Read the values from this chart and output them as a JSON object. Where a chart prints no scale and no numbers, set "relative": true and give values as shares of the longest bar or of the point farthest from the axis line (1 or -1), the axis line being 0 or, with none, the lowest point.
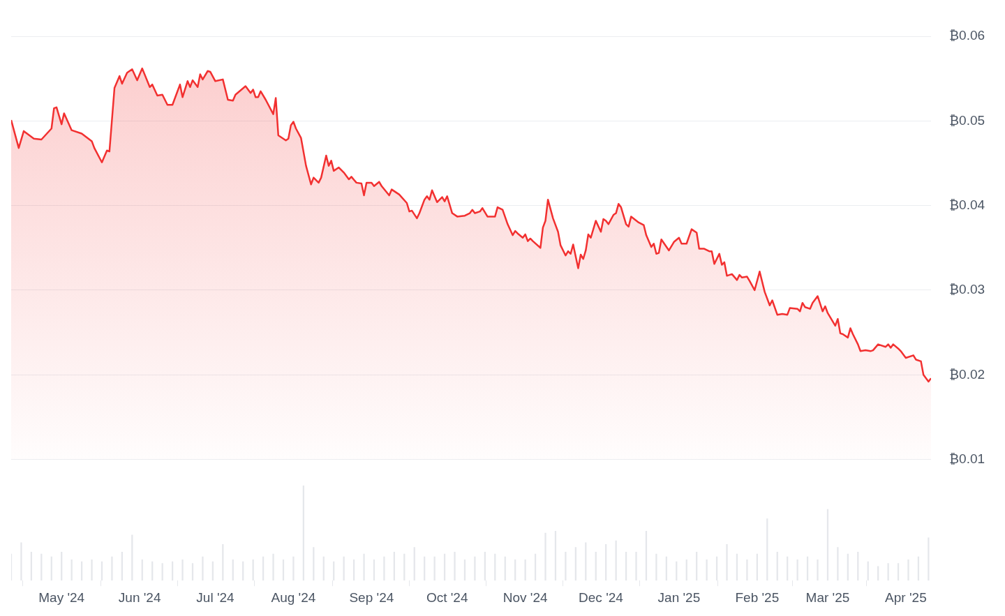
{
  "chart_data": [
    {
      "type": "area",
      "color": "#f23030",
      "xlim": [
        "2024-04-11",
        "2025-04-11"
      ],
      "ylim": [
        0.01,
        0.06
      ],
      "yticks": [
        {
          "value": 0.01,
          "label": "₿0.01"
        },
        {
          "value": 0.02,
          "label": "₿0.02"
        },
        {
          "value": 0.03,
          "label": "₿0.03"
        },
        {
          "value": 0.04,
          "label": "₿0.04"
        },
        {
          "value": 0.05,
          "label": "₿0.05"
        },
        {
          "value": 0.06,
          "label": "₿0.06"
        }
      ],
      "grid": "y",
      "tick_labels": "y",
      "marker": "none",
      "x": [
        "2024-04-11",
        "2024-04-14",
        "2024-04-16",
        "2024-04-20",
        "2024-04-23",
        "2024-04-27",
        "2024-04-28",
        "2024-04-29",
        "2024-05-01",
        "2024-05-02",
        "2024-05-05",
        "2024-05-09",
        "2024-05-13",
        "2024-05-14",
        "2024-05-17",
        "2024-05-19",
        "2024-05-20",
        "2024-05-22",
        "2024-05-24",
        "2024-05-25",
        "2024-05-27",
        "2024-05-29",
        "2024-05-31",
        "2024-06-02",
        "2024-06-05",
        "2024-06-06",
        "2024-06-08",
        "2024-06-10",
        "2024-06-12",
        "2024-06-14",
        "2024-06-17",
        "2024-06-18",
        "2024-06-20",
        "2024-06-21",
        "2024-06-22",
        "2024-06-24",
        "2024-06-25",
        "2024-06-26",
        "2024-06-28",
        "2024-06-29",
        "2024-07-01",
        "2024-07-04",
        "2024-07-06",
        "2024-07-08",
        "2024-07-09",
        "2024-07-13",
        "2024-07-15",
        "2024-07-16",
        "2024-07-17",
        "2024-07-18",
        "2024-07-19",
        "2024-07-21",
        "2024-07-24",
        "2024-07-25",
        "2024-07-26",
        "2024-07-29",
        "2024-07-30",
        "2024-07-31",
        "2024-08-01",
        "2024-08-02",
        "2024-08-04",
        "2024-08-06",
        "2024-08-08",
        "2024-08-09",
        "2024-08-11",
        "2024-08-12",
        "2024-08-14",
        "2024-08-15",
        "2024-08-16",
        "2024-08-17",
        "2024-08-19",
        "2024-08-21",
        "2024-08-23",
        "2024-08-24",
        "2024-08-26",
        "2024-08-28",
        "2024-08-29",
        "2024-08-30",
        "2024-09-01",
        "2024-09-02",
        "2024-09-04",
        "2024-09-05",
        "2024-09-08",
        "2024-09-09",
        "2024-09-12",
        "2024-09-15",
        "2024-09-16",
        "2024-09-17",
        "2024-09-19",
        "2024-09-20",
        "2024-09-22",
        "2024-09-23",
        "2024-09-24",
        "2024-09-25",
        "2024-09-27",
        "2024-09-29",
        "2024-09-30",
        "2024-10-01",
        "2024-10-03",
        "2024-10-05",
        "2024-10-08",
        "2024-10-10",
        "2024-10-11",
        "2024-10-12",
        "2024-10-14",
        "2024-10-15",
        "2024-10-17",
        "2024-10-20",
        "2024-10-21",
        "2024-10-23",
        "2024-10-25",
        "2024-10-27",
        "2024-10-28",
        "2024-10-29",
        "2024-10-31",
        "2024-11-01",
        "2024-11-02",
        "2024-11-03",
        "2024-11-04",
        "2024-11-07",
        "2024-11-08",
        "2024-11-09",
        "2024-11-10",
        "2024-11-12",
        "2024-11-14",
        "2024-11-15",
        "2024-11-17",
        "2024-11-18",
        "2024-11-19",
        "2024-11-20",
        "2024-11-22",
        "2024-11-23",
        "2024-11-24",
        "2024-11-25",
        "2024-11-26",
        "2024-11-27",
        "2024-11-29",
        "2024-12-01",
        "2024-12-02",
        "2024-12-03",
        "2024-12-04",
        "2024-12-06",
        "2024-12-07",
        "2024-12-08",
        "2024-12-09",
        "2024-12-11",
        "2024-12-12",
        "2024-12-13",
        "2024-12-16",
        "2024-12-18",
        "2024-12-19",
        "2024-12-21",
        "2024-12-22",
        "2024-12-23",
        "2024-12-24",
        "2024-12-25",
        "2024-12-28",
        "2024-12-30",
        "2025-01-01",
        "2025-01-02",
        "2025-01-04",
        "2025-01-06",
        "2025-01-08",
        "2025-01-09",
        "2025-01-11",
        "2025-01-13",
        "2025-01-14",
        "2025-01-15",
        "2025-01-17",
        "2025-01-18",
        "2025-01-19",
        "2025-01-20",
        "2025-01-22",
        "2025-01-24",
        "2025-01-25",
        "2025-01-26",
        "2025-01-28",
        "2025-01-29",
        "2025-01-31",
        "2025-02-02",
        "2025-02-04",
        "2025-02-06",
        "2025-02-07",
        "2025-02-09",
        "2025-02-11",
        "2025-02-13",
        "2025-02-14",
        "2025-02-17",
        "2025-02-18",
        "2025-02-19",
        "2025-02-20",
        "2025-02-22",
        "2025-02-23",
        "2025-02-25",
        "2025-02-27",
        "2025-02-28",
        "2025-03-01",
        "2025-03-04",
        "2025-03-05",
        "2025-03-06",
        "2025-03-07",
        "2025-03-09",
        "2025-03-10",
        "2025-03-11",
        "2025-03-13",
        "2025-03-14",
        "2025-03-16",
        "2025-03-18",
        "2025-03-19",
        "2025-03-21",
        "2025-03-24",
        "2025-03-25",
        "2025-03-26",
        "2025-03-27",
        "2025-03-29",
        "2025-03-30",
        "2025-04-01",
        "2025-04-04",
        "2025-04-05",
        "2025-04-07",
        "2025-04-08",
        "2025-04-10",
        "2025-04-11"
      ],
      "values": [
        0.0501,
        0.0468,
        0.0488,
        0.0479,
        0.0478,
        0.0491,
        0.0515,
        0.0516,
        0.0496,
        0.0509,
        0.0489,
        0.0485,
        0.0476,
        0.0468,
        0.0451,
        0.0465,
        0.0464,
        0.0539,
        0.0553,
        0.0544,
        0.0557,
        0.0561,
        0.0548,
        0.0562,
        0.054,
        0.0543,
        0.053,
        0.0531,
        0.0519,
        0.0519,
        0.0543,
        0.0528,
        0.0547,
        0.054,
        0.0548,
        0.054,
        0.0555,
        0.0549,
        0.0559,
        0.0558,
        0.0547,
        0.0549,
        0.0525,
        0.0524,
        0.0531,
        0.0541,
        0.0533,
        0.0537,
        0.0528,
        0.0528,
        0.0535,
        0.0525,
        0.0508,
        0.0527,
        0.0483,
        0.0477,
        0.0479,
        0.0495,
        0.0499,
        0.0491,
        0.048,
        0.0447,
        0.0425,
        0.0433,
        0.0427,
        0.0433,
        0.0459,
        0.0447,
        0.0453,
        0.0441,
        0.0445,
        0.0439,
        0.0431,
        0.0434,
        0.0427,
        0.0426,
        0.0412,
        0.0427,
        0.0427,
        0.0423,
        0.0428,
        0.0423,
        0.0412,
        0.0419,
        0.0413,
        0.0403,
        0.0393,
        0.0394,
        0.0385,
        0.0391,
        0.0407,
        0.0411,
        0.0407,
        0.0418,
        0.0404,
        0.041,
        0.0405,
        0.0411,
        0.0391,
        0.0387,
        0.0388,
        0.0391,
        0.0395,
        0.0391,
        0.0393,
        0.0397,
        0.0387,
        0.0387,
        0.0398,
        0.0395,
        0.0378,
        0.0365,
        0.037,
        0.0367,
        0.0362,
        0.0366,
        0.0358,
        0.0361,
        0.0358,
        0.035,
        0.0374,
        0.0382,
        0.0407,
        0.0385,
        0.0369,
        0.0353,
        0.0341,
        0.0346,
        0.0343,
        0.0354,
        0.0326,
        0.0342,
        0.0337,
        0.0347,
        0.0366,
        0.0362,
        0.0382,
        0.0369,
        0.0384,
        0.0382,
        0.0378,
        0.0389,
        0.0391,
        0.0402,
        0.0398,
        0.0378,
        0.0375,
        0.0387,
        0.038,
        0.0377,
        0.0365,
        0.0351,
        0.0355,
        0.0343,
        0.0344,
        0.036,
        0.0347,
        0.0357,
        0.0362,
        0.0355,
        0.0355,
        0.0372,
        0.0368,
        0.0349,
        0.0349,
        0.0346,
        0.0346,
        0.0331,
        0.0343,
        0.033,
        0.0333,
        0.0317,
        0.0319,
        0.0312,
        0.0318,
        0.0315,
        0.0316,
        0.0311,
        0.03,
        0.0322,
        0.0298,
        0.0282,
        0.0288,
        0.0271,
        0.0272,
        0.0271,
        0.0279,
        0.0278,
        0.0275,
        0.0285,
        0.028,
        0.0278,
        0.0285,
        0.0293,
        0.0275,
        0.0281,
        0.0273,
        0.0258,
        0.0266,
        0.0249,
        0.0248,
        0.0244,
        0.0255,
        0.0248,
        0.0236,
        0.0228,
        0.0229,
        0.0228,
        0.0229,
        0.0236,
        0.0233,
        0.0236,
        0.0232,
        0.0236,
        0.0231,
        0.0228,
        0.022,
        0.0223,
        0.0218,
        0.0216,
        0.02,
        0.0192,
        0.0196
      ]
    },
    {
      "type": "bar",
      "relative": true,
      "color": "#e5e7eb",
      "xlim": [
        "2024-04-11",
        "2025-04-11"
      ],
      "tick_labels": "x",
      "xticks": [
        {
          "value": "2024-05-01",
          "label": "May '24"
        },
        {
          "value": "2024-06-01",
          "label": "Jun '24"
        },
        {
          "value": "2024-07-01",
          "label": "Jul '24"
        },
        {
          "value": "2024-08-01",
          "label": "Aug '24"
        },
        {
          "value": "2024-09-01",
          "label": "Sep '24"
        },
        {
          "value": "2024-10-01",
          "label": "Oct '24"
        },
        {
          "value": "2024-11-01",
          "label": "Nov '24"
        },
        {
          "value": "2024-12-01",
          "label": "Dec '24"
        },
        {
          "value": "2025-01-01",
          "label": "Jan '25"
        },
        {
          "value": "2025-02-01",
          "label": "Feb '25"
        },
        {
          "value": "2025-03-01",
          "label": "Mar '25"
        },
        {
          "value": "2025-04-01",
          "label": "Apr '25"
        }
      ],
      "x": [
        "2024-04-11",
        "2024-04-15",
        "2024-04-19",
        "2024-04-23",
        "2024-04-27",
        "2024-05-01",
        "2024-05-05",
        "2024-05-09",
        "2024-05-13",
        "2024-05-17",
        "2024-05-21",
        "2024-05-25",
        "2024-05-29",
        "2024-06-02",
        "2024-06-06",
        "2024-06-10",
        "2024-06-14",
        "2024-06-18",
        "2024-06-22",
        "2024-06-26",
        "2024-06-30",
        "2024-07-04",
        "2024-07-08",
        "2024-07-12",
        "2024-07-16",
        "2024-07-20",
        "2024-07-24",
        "2024-07-28",
        "2024-08-01",
        "2024-08-05",
        "2024-08-09",
        "2024-08-13",
        "2024-08-17",
        "2024-08-21",
        "2024-08-25",
        "2024-08-29",
        "2024-09-02",
        "2024-09-06",
        "2024-09-10",
        "2024-09-14",
        "2024-09-18",
        "2024-09-22",
        "2024-09-26",
        "2024-09-30",
        "2024-10-04",
        "2024-10-08",
        "2024-10-12",
        "2024-10-16",
        "2024-10-20",
        "2024-10-24",
        "2024-10-28",
        "2024-11-01",
        "2024-11-05",
        "2024-11-09",
        "2024-11-13",
        "2024-11-17",
        "2024-11-21",
        "2024-11-25",
        "2024-11-29",
        "2024-12-03",
        "2024-12-07",
        "2024-12-11",
        "2024-12-15",
        "2024-12-19",
        "2024-12-23",
        "2024-12-27",
        "2024-12-31",
        "2025-01-04",
        "2025-01-08",
        "2025-01-12",
        "2025-01-16",
        "2025-01-20",
        "2025-01-24",
        "2025-01-28",
        "2025-02-01",
        "2025-02-05",
        "2025-02-09",
        "2025-02-13",
        "2025-02-17",
        "2025-02-21",
        "2025-02-25",
        "2025-03-01",
        "2025-03-05",
        "2025-03-09",
        "2025-03-13",
        "2025-03-17",
        "2025-03-21",
        "2025-03-25",
        "2025-03-29",
        "2025-04-02",
        "2025-04-06",
        "2025-04-10"
      ],
      "values": [
        0.28,
        0.4,
        0.3,
        0.28,
        0.25,
        0.3,
        0.22,
        0.2,
        0.22,
        0.2,
        0.25,
        0.3,
        0.48,
        0.22,
        0.2,
        0.18,
        0.2,
        0.22,
        0.18,
        0.25,
        0.2,
        0.38,
        0.22,
        0.2,
        0.22,
        0.25,
        0.28,
        0.22,
        0.25,
        1,
        0.35,
        0.25,
        0.2,
        0.25,
        0.22,
        0.28,
        0.22,
        0.25,
        0.3,
        0.28,
        0.35,
        0.25,
        0.25,
        0.28,
        0.3,
        0.22,
        0.25,
        0.3,
        0.28,
        0.25,
        0.22,
        0.22,
        0.28,
        0.5,
        0.52,
        0.3,
        0.35,
        0.4,
        0.3,
        0.38,
        0.42,
        0.3,
        0.3,
        0.52,
        0.28,
        0.25,
        0.2,
        0.22,
        0.3,
        0.22,
        0.25,
        0.38,
        0.28,
        0.22,
        0.28,
        0.65,
        0.3,
        0.25,
        0.22,
        0.25,
        0.22,
        0.75,
        0.35,
        0.28,
        0.3,
        0.2,
        0.15,
        0.18,
        0.18,
        0.22,
        0.25,
        0.45
      ]
    }
  ]
}
